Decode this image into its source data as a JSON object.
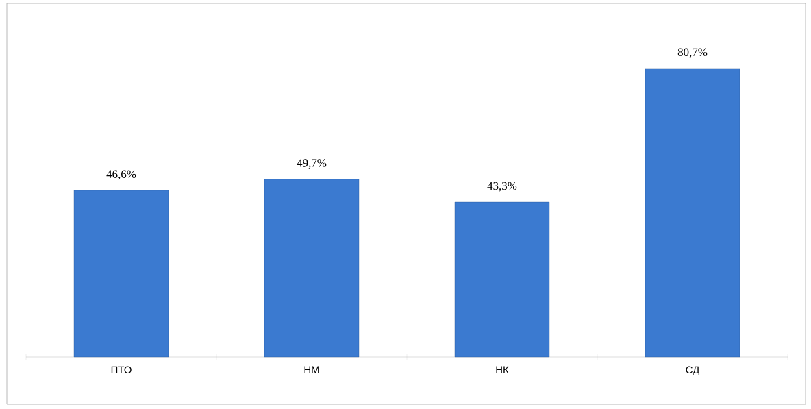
{
  "chart_data": {
    "type": "bar",
    "categories": [
      "ПТО",
      "НМ",
      "НК",
      "СД"
    ],
    "values": [
      46.6,
      49.7,
      43.3,
      80.7
    ],
    "value_labels": [
      "46,6%",
      "49,7%",
      "43,3%",
      "80,7%"
    ],
    "color": "#3b7ad0"
  }
}
